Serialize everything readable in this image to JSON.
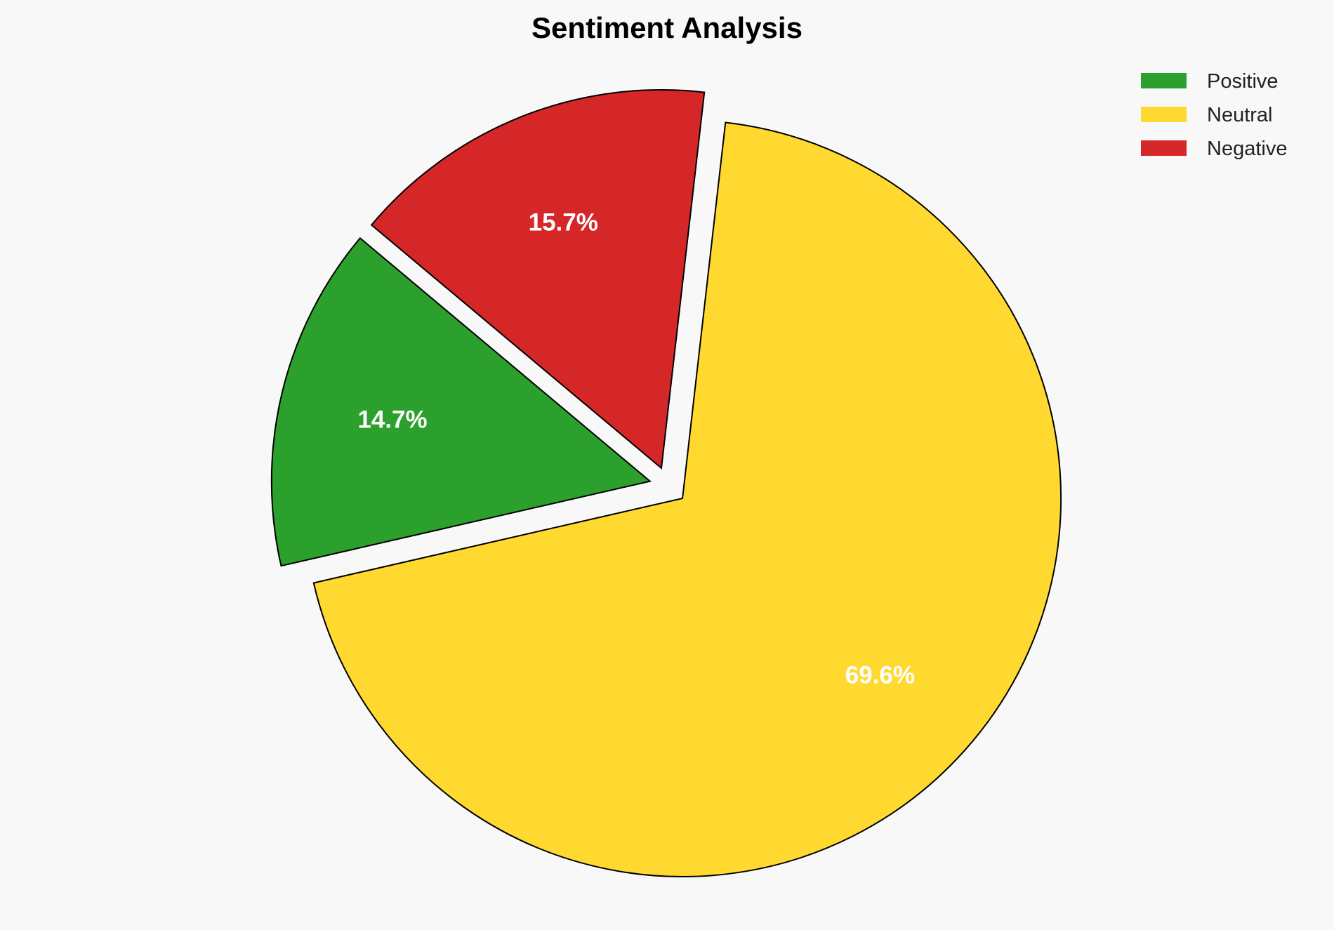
{
  "chart_data": {
    "type": "pie",
    "title": "Sentiment Analysis",
    "categories": [
      "Positive",
      "Neutral",
      "Negative"
    ],
    "values": [
      14.7,
      69.6,
      15.7
    ],
    "labels": [
      "14.7%",
      "69.6%",
      "15.7%"
    ],
    "colors": [
      "#2ca02c",
      "#ffd92f",
      "#d62728"
    ],
    "explode": [
      0.05,
      0.05,
      0.05
    ],
    "start_angle_deg": 140,
    "direction": "counterclockwise",
    "legend_placement": "top-right",
    "background": "#f8f8f8"
  }
}
